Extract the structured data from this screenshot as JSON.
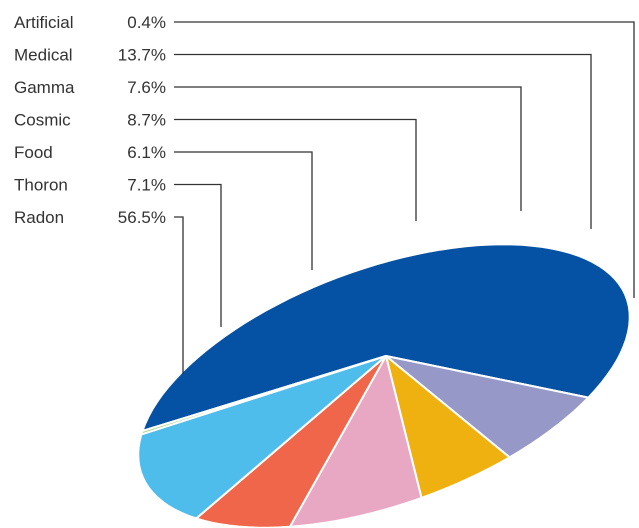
{
  "chart_data": {
    "type": "pie",
    "style": "3d-tilted",
    "legend_placement": "left-with-leader-lines",
    "categories": [
      "Radon",
      "Thoron",
      "Food",
      "Cosmic",
      "Gamma",
      "Medical",
      "Artificial"
    ],
    "values": [
      56.5,
      7.1,
      6.1,
      8.7,
      7.6,
      13.7,
      0.4
    ],
    "labels": [
      "56.5%",
      "7.1%",
      "6.1%",
      "8.7%",
      "7.6%",
      "13.7%",
      "0.4%"
    ],
    "colors": [
      "#0551a3",
      "#9699c8",
      "#efb10f",
      "#e8a7c3",
      "#f0664a",
      "#4fbdeb",
      "#9dce7a"
    ],
    "unit": "%"
  }
}
